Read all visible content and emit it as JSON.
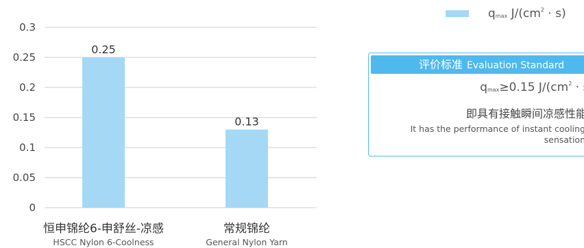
{
  "chart_data": {
    "type": "bar",
    "categories": [
      "恒申锦纶6-申舒丝-凉感",
      "常规锦纶"
    ],
    "categories_en": [
      "HSCC Nylon 6-Coolness",
      "General Nylon Yarn"
    ],
    "values": [
      0.25,
      0.13
    ],
    "value_labels": [
      "0.25",
      "0.13"
    ],
    "y_ticks": [
      "0",
      "0.05",
      "0.1",
      "0.15",
      "0.2",
      "0.25",
      "0.3"
    ],
    "ylim": [
      0,
      0.3
    ],
    "grid": true,
    "legend_position": "top-right",
    "bar_color": "#a5d8f5",
    "series": [
      {
        "name": "q_max J/(cm²·s)",
        "values": [
          0.25,
          0.13
        ]
      }
    ]
  },
  "legend": {
    "q": "q",
    "sub": "max",
    "unit_pre": " J/(cm",
    "sup": "2",
    "unit_post": " · s)"
  },
  "standard": {
    "title_cn": "评价标准",
    "title_en": "Evaluation Standard",
    "formula": {
      "q": "q",
      "sub": "max",
      "rel": "≥0.15 J/(cm",
      "sup": "2",
      "post": " · s)"
    },
    "conclusion_cn": "即具有接触瞬间凉感性能",
    "conclusion_en": "It has the performance of instant cooling sensation"
  },
  "colors": {
    "bar": "#a5d8f5",
    "accent": "#4fb8ec",
    "grid": "#cccccc",
    "text": "#333333"
  }
}
